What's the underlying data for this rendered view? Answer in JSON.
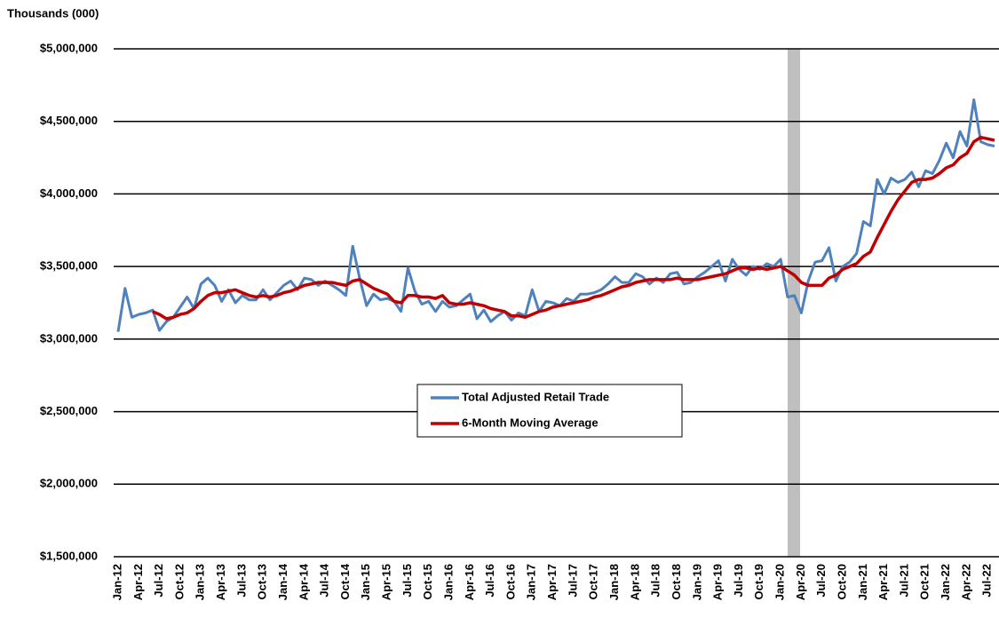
{
  "chart_data": {
    "type": "line",
    "y_axis_title": "Thousands (000)",
    "categories": [
      "Jan-12",
      null,
      null,
      "Apr-12",
      null,
      null,
      "Jul-12",
      null,
      null,
      "Oct-12",
      null,
      null,
      "Jan-13",
      null,
      null,
      "Apr-13",
      null,
      null,
      "Jul-13",
      null,
      null,
      "Oct-13",
      null,
      null,
      "Jan-14",
      null,
      null,
      "Apr-14",
      null,
      null,
      "Jul-14",
      null,
      null,
      "Oct-14",
      null,
      null,
      "Jan-15",
      null,
      null,
      "Apr-15",
      null,
      null,
      "Jul-15",
      null,
      null,
      "Oct-15",
      null,
      null,
      "Jan-16",
      null,
      null,
      "Apr-16",
      null,
      null,
      "Jul-16",
      null,
      null,
      "Oct-16",
      null,
      null,
      "Jan-17",
      null,
      null,
      "Apr-17",
      null,
      null,
      "Jul-17",
      null,
      null,
      "Oct-17",
      null,
      null,
      "Jan-18",
      null,
      null,
      "Apr-18",
      null,
      null,
      "Jul-18",
      null,
      null,
      "Oct-18",
      null,
      null,
      "Jan-19",
      null,
      null,
      "Apr-19",
      null,
      null,
      "Jul-19",
      null,
      null,
      "Oct-19",
      null,
      null,
      "Jan-20",
      null,
      null,
      "Apr-20",
      null,
      null,
      "Jul-20",
      null,
      null,
      "Oct-20",
      null,
      null,
      "Jan-21",
      null,
      null,
      "Apr-21",
      null,
      null,
      "Jul-21",
      null,
      null,
      "Oct-21",
      null,
      null,
      "Jan-22",
      null,
      null,
      "Apr-22",
      null,
      null,
      "Jul-22",
      null
    ],
    "series": [
      {
        "name": "Total Adjusted Retail Trade",
        "color": "#4f81bd",
        "values": [
          3050000,
          3350000,
          3150000,
          3170000,
          3180000,
          3200000,
          3060000,
          3120000,
          3150000,
          3220000,
          3290000,
          3210000,
          3380000,
          3420000,
          3370000,
          3260000,
          3340000,
          3250000,
          3300000,
          3270000,
          3270000,
          3340000,
          3270000,
          3320000,
          3370000,
          3400000,
          3340000,
          3420000,
          3410000,
          3370000,
          3400000,
          3370000,
          3340000,
          3300000,
          3640000,
          3420000,
          3230000,
          3310000,
          3270000,
          3280000,
          3260000,
          3190000,
          3490000,
          3330000,
          3240000,
          3260000,
          3190000,
          3260000,
          3220000,
          3230000,
          3270000,
          3310000,
          3140000,
          3200000,
          3120000,
          3160000,
          3190000,
          3130000,
          3180000,
          3160000,
          3340000,
          3190000,
          3260000,
          3250000,
          3230000,
          3280000,
          3260000,
          3310000,
          3310000,
          3320000,
          3340000,
          3380000,
          3430000,
          3390000,
          3390000,
          3450000,
          3430000,
          3380000,
          3420000,
          3390000,
          3450000,
          3460000,
          3380000,
          3390000,
          3430000,
          3460000,
          3500000,
          3540000,
          3400000,
          3550000,
          3480000,
          3440000,
          3500000,
          3480000,
          3520000,
          3500000,
          3550000,
          3290000,
          3300000,
          3180000,
          3400000,
          3530000,
          3540000,
          3630000,
          3400000,
          3500000,
          3530000,
          3590000,
          3810000,
          3780000,
          4100000,
          4000000,
          4110000,
          4080000,
          4100000,
          4150000,
          4050000,
          4160000,
          4140000,
          4230000,
          4350000,
          4250000,
          4430000,
          4330000,
          4650000,
          4360000,
          4340000,
          4330000
        ]
      },
      {
        "name": "6-Month Moving Average",
        "color": "#c00000",
        "values": [
          null,
          null,
          null,
          null,
          null,
          3190000,
          3170000,
          3140000,
          3150000,
          3170000,
          3180000,
          3210000,
          3260000,
          3300000,
          3320000,
          3320000,
          3330000,
          3340000,
          3320000,
          3300000,
          3290000,
          3300000,
          3290000,
          3300000,
          3320000,
          3330000,
          3350000,
          3370000,
          3380000,
          3390000,
          3390000,
          3390000,
          3380000,
          3370000,
          3400000,
          3410000,
          3380000,
          3350000,
          3330000,
          3310000,
          3260000,
          3250000,
          3300000,
          3300000,
          3290000,
          3290000,
          3280000,
          3300000,
          3250000,
          3240000,
          3240000,
          3250000,
          3240000,
          3230000,
          3210000,
          3200000,
          3190000,
          3160000,
          3160000,
          3150000,
          3170000,
          3190000,
          3200000,
          3220000,
          3230000,
          3240000,
          3250000,
          3260000,
          3270000,
          3290000,
          3300000,
          3320000,
          3340000,
          3360000,
          3370000,
          3390000,
          3400000,
          3410000,
          3410000,
          3410000,
          3410000,
          3420000,
          3410000,
          3410000,
          3410000,
          3420000,
          3430000,
          3440000,
          3450000,
          3470000,
          3490000,
          3490000,
          3480000,
          3490000,
          3480000,
          3490000,
          3500000,
          3470000,
          3440000,
          3390000,
          3370000,
          3370000,
          3370000,
          3420000,
          3440000,
          3480000,
          3500000,
          3520000,
          3570000,
          3600000,
          3700000,
          3790000,
          3880000,
          3960000,
          4020000,
          4080000,
          4100000,
          4100000,
          4110000,
          4140000,
          4180000,
          4200000,
          4250000,
          4280000,
          4360000,
          4390000,
          4380000,
          4370000
        ]
      }
    ],
    "ylim": [
      1500000,
      5000000
    ],
    "yticks": [
      {
        "value": 1500000,
        "label": "$1,500,000"
      },
      {
        "value": 2000000,
        "label": "$2,000,000"
      },
      {
        "value": 2500000,
        "label": "$2,500,000"
      },
      {
        "value": 3000000,
        "label": "$3,000,000"
      },
      {
        "value": 3500000,
        "label": "$3,500,000"
      },
      {
        "value": 4000000,
        "label": "$4,000,000"
      },
      {
        "value": 4500000,
        "label": "$4,500,000"
      },
      {
        "value": 5000000,
        "label": "$5,000,000"
      }
    ],
    "grid": true,
    "legend": "center"
  }
}
